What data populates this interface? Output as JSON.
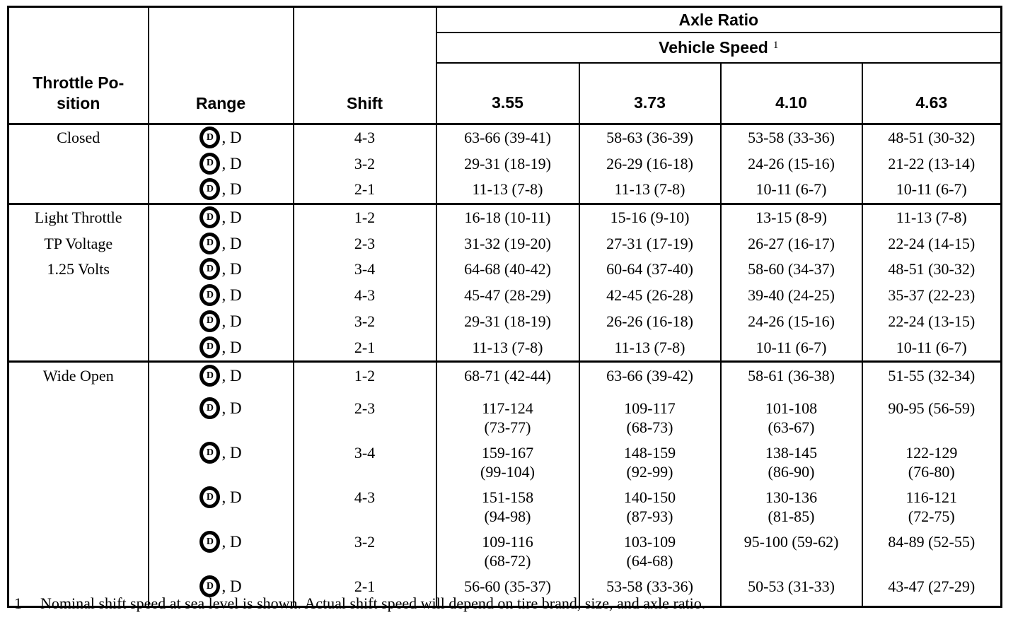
{
  "page": {
    "background_color": "#ffffff",
    "ink_color": "#000000"
  },
  "table": {
    "header": {
      "throttle_position": "Throttle Po-\nsition",
      "range": "Range",
      "shift": "Shift",
      "axle_ratio": "Axle Ratio",
      "vehicle_speed": "Vehicle Speed",
      "vehicle_speed_note_marker": "1",
      "ratios": [
        "3.55",
        "3.73",
        "4.10",
        "4.63"
      ]
    },
    "range_icon": "circled-d-overdrive-icon",
    "sections": [
      {
        "id": "closed",
        "label_lines": [
          "Closed"
        ],
        "rows": [
          {
            "range": "Ⓓ, D",
            "shift": "4-3",
            "speeds": [
              "63-66 (39-41)",
              "58-63 (36-39)",
              "53-58 (33-36)",
              "48-51 (30-32)"
            ]
          },
          {
            "range": "Ⓓ, D",
            "shift": "3-2",
            "speeds": [
              "29-31 (18-19)",
              "26-29 (16-18)",
              "24-26 (15-16)",
              "21-22 (13-14)"
            ]
          },
          {
            "range": "Ⓓ, D",
            "shift": "2-1",
            "speeds": [
              "11-13 (7-8)",
              "11-13 (7-8)",
              "10-11 (6-7)",
              "10-11 (6-7)"
            ]
          }
        ]
      },
      {
        "id": "light-throttle",
        "label_lines": [
          "Light Throttle",
          "TP Voltage",
          "1.25 Volts"
        ],
        "rows": [
          {
            "range": "Ⓓ, D",
            "shift": "1-2",
            "speeds": [
              "16-18 (10-11)",
              "15-16 (9-10)",
              "13-15 (8-9)",
              "11-13 (7-8)"
            ]
          },
          {
            "range": "Ⓓ, D",
            "shift": "2-3",
            "speeds": [
              "31-32 (19-20)",
              "27-31 (17-19)",
              "26-27 (16-17)",
              "22-24 (14-15)"
            ]
          },
          {
            "range": "Ⓓ, D",
            "shift": "3-4",
            "speeds": [
              "64-68 (40-42)",
              "60-64 (37-40)",
              "58-60 (34-37)",
              "48-51 (30-32)"
            ]
          },
          {
            "range": "Ⓓ, D",
            "shift": "4-3",
            "speeds": [
              "45-47 (28-29)",
              "42-45 (26-28)",
              "39-40 (24-25)",
              "35-37 (22-23)"
            ]
          },
          {
            "range": "Ⓓ, D",
            "shift": "3-2",
            "speeds": [
              "29-31 (18-19)",
              "26-26 (16-18)",
              "24-26 (15-16)",
              "22-24 (13-15)"
            ]
          },
          {
            "range": "Ⓓ, D",
            "shift": "2-1",
            "speeds": [
              "11-13 (7-8)",
              "11-13 (7-8)",
              "10-11 (6-7)",
              "10-11 (6-7)"
            ]
          }
        ]
      },
      {
        "id": "wide-open",
        "label_lines": [
          "Wide Open"
        ],
        "rows": [
          {
            "range": "Ⓓ, D",
            "shift": "1-2",
            "speeds": [
              "68-71 (42-44)",
              "63-66 (39-42)",
              "58-61 (36-38)",
              "51-55 (32-34)"
            ]
          },
          {
            "range": "Ⓓ, D",
            "shift": "2-3",
            "speeds": [
              "117-124\n(73-77)",
              "109-117\n(68-73)",
              "101-108\n(63-67)",
              "90-95 (56-59)"
            ]
          },
          {
            "range": "Ⓓ, D",
            "shift": "3-4",
            "speeds": [
              "159-167\n(99-104)",
              "148-159\n(92-99)",
              "138-145\n(86-90)",
              "122-129\n(76-80)"
            ]
          },
          {
            "range": "Ⓓ, D",
            "shift": "4-3",
            "speeds": [
              "151-158\n(94-98)",
              "140-150\n(87-93)",
              "130-136\n(81-85)",
              "116-121\n(72-75)"
            ]
          },
          {
            "range": "Ⓓ, D",
            "shift": "3-2",
            "speeds": [
              "109-116\n(68-72)",
              "103-109\n(64-68)",
              "95-100 (59-62)",
              "84-89 (52-55)"
            ]
          },
          {
            "range": "Ⓓ, D",
            "shift": "2-1",
            "speeds": [
              "56-60 (35-37)",
              "53-58 (33-36)",
              "50-53 (31-33)",
              "43-47 (27-29)"
            ]
          }
        ]
      }
    ],
    "footnote": {
      "marker": "1",
      "text": "Nominal shift speed at sea level is shown. Actual shift speed will depend on tire brand, size, and axle ratio."
    }
  }
}
